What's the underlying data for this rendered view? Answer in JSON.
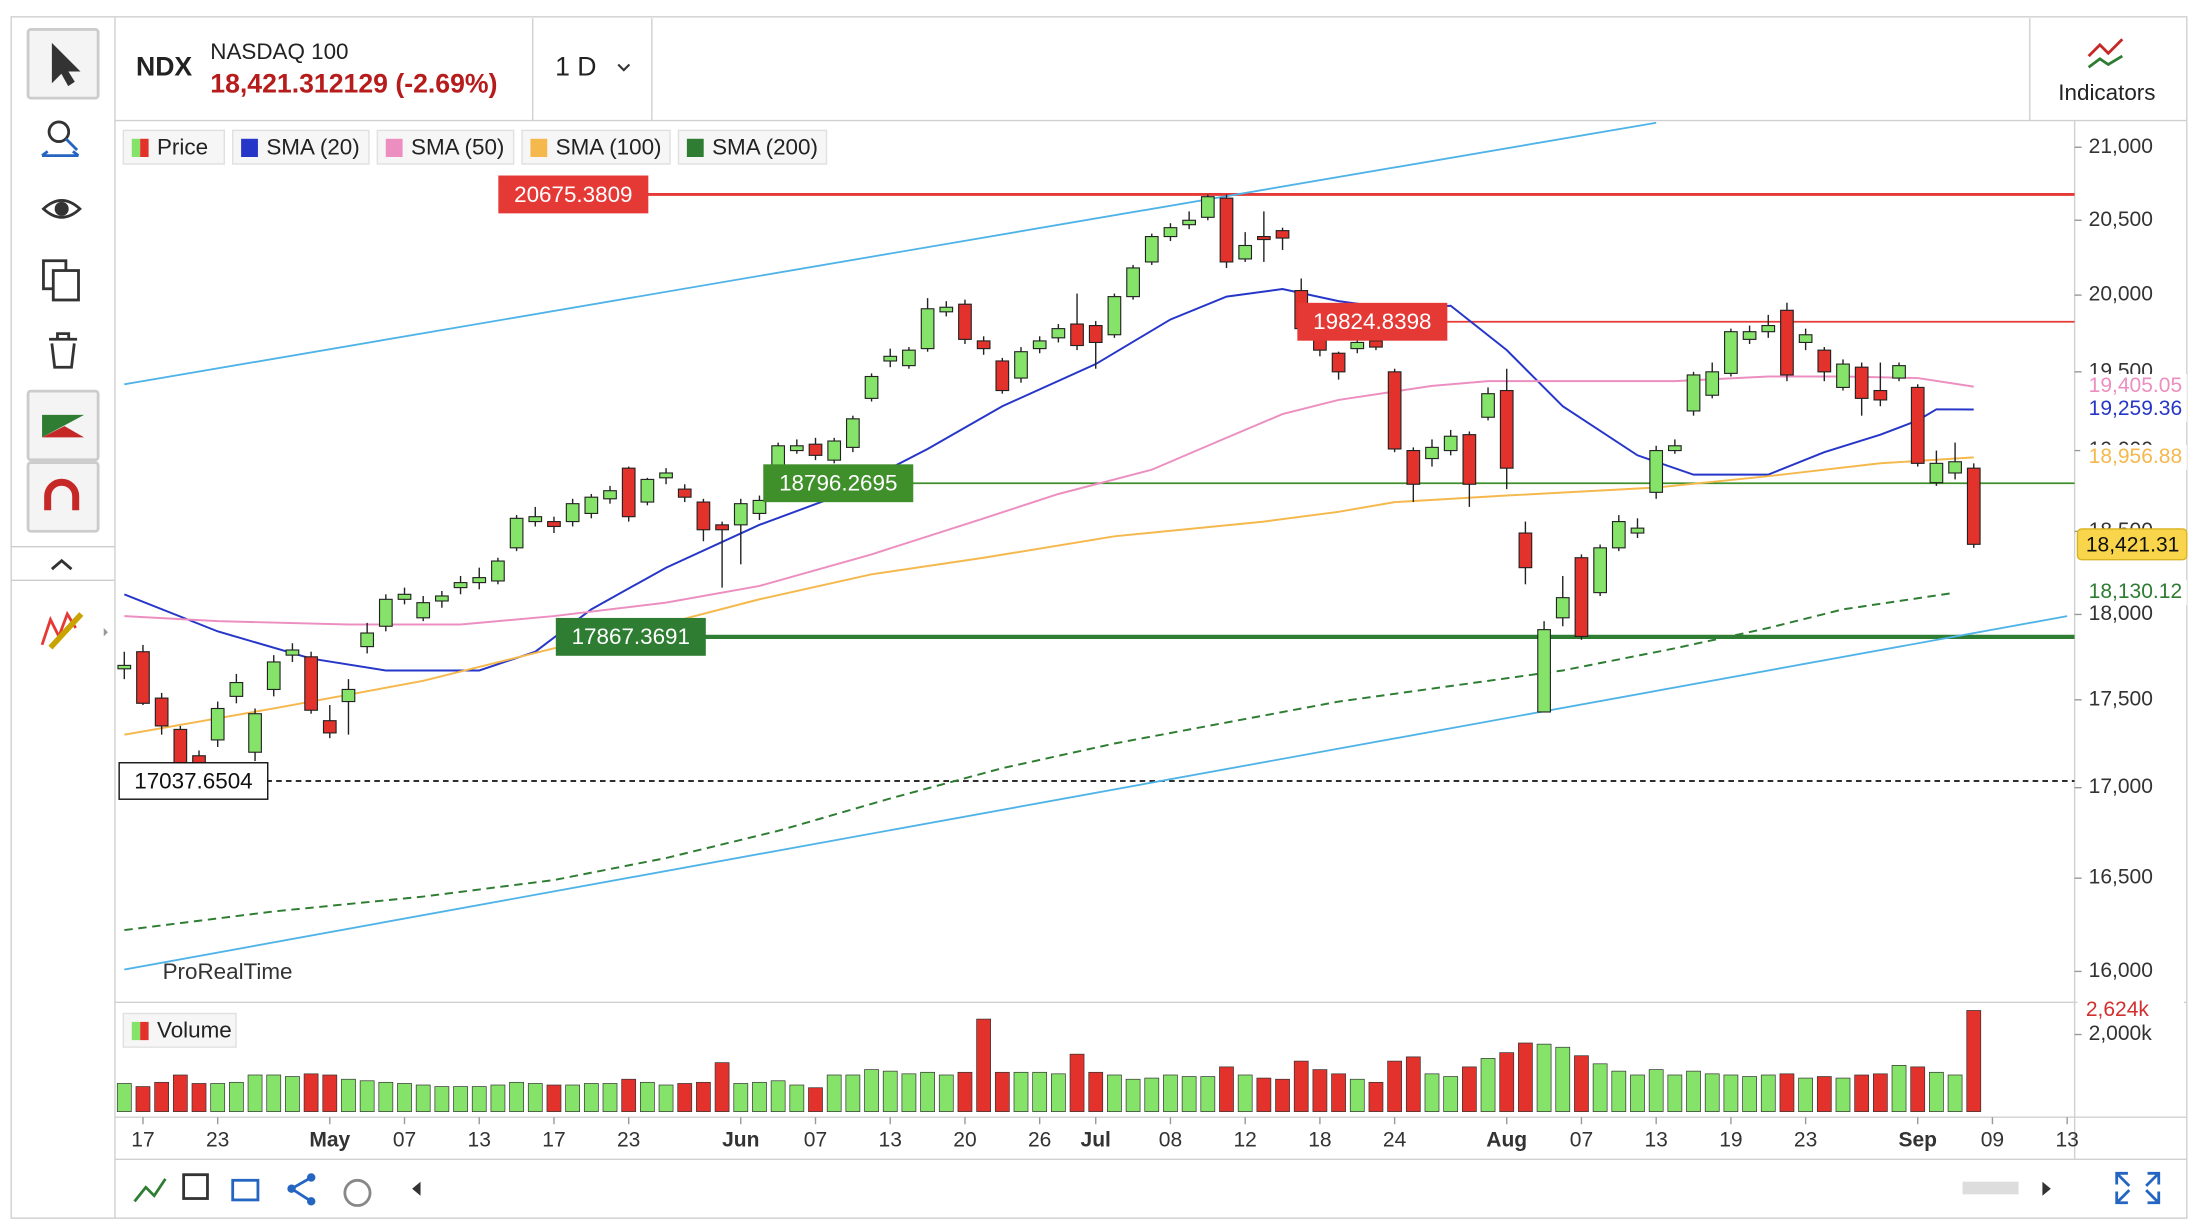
{
  "header": {
    "symbol": "NDX",
    "name": "NASDAQ 100",
    "price": "18,421.312129 (-2.69%)",
    "interval": "1 D",
    "indicators": "Indicators"
  },
  "chart_data": [
    {
      "type": "candlestick",
      "name": "Price",
      "watermark": "ProRealTime",
      "up_color": "#86e36a",
      "down_color": "#e3312b",
      "log_scale": true,
      "xlim": [
        -0.5,
        104.4
      ],
      "ylim": [
        15860,
        21166
      ],
      "xticks": [
        {
          "value": 1,
          "label": "17"
        },
        {
          "value": 5,
          "label": "23"
        },
        {
          "value": 11,
          "label": "May"
        },
        {
          "value": 15,
          "label": "07"
        },
        {
          "value": 19,
          "label": "13"
        },
        {
          "value": 23,
          "label": "17"
        },
        {
          "value": 27,
          "label": "23"
        },
        {
          "value": 33,
          "label": "Jun"
        },
        {
          "value": 37,
          "label": "07"
        },
        {
          "value": 41,
          "label": "13"
        },
        {
          "value": 45,
          "label": "20"
        },
        {
          "value": 49,
          "label": "26"
        },
        {
          "value": 52,
          "label": "Jul"
        },
        {
          "value": 56,
          "label": "08"
        },
        {
          "value": 60,
          "label": "12"
        },
        {
          "value": 64,
          "label": "18"
        },
        {
          "value": 68,
          "label": "24"
        },
        {
          "value": 74,
          "label": "Aug"
        },
        {
          "value": 78,
          "label": "07"
        },
        {
          "value": 82,
          "label": "13"
        },
        {
          "value": 86,
          "label": "19"
        },
        {
          "value": 90,
          "label": "23"
        },
        {
          "value": 96,
          "label": "Sep"
        },
        {
          "value": 100,
          "label": "09"
        },
        {
          "value": 104,
          "label": "13"
        }
      ],
      "yticks": [
        {
          "value": 16000,
          "label": "16,000"
        },
        {
          "value": 16500,
          "label": "16,500"
        },
        {
          "value": 17000,
          "label": "17,000"
        },
        {
          "value": 17500,
          "label": "17,500"
        },
        {
          "value": 18000,
          "label": "18,000"
        },
        {
          "value": 18500,
          "label": "18,500"
        },
        {
          "value": 19000,
          "label": "19,000"
        },
        {
          "value": 19500,
          "label": "19,500"
        },
        {
          "value": 20000,
          "label": "20,000"
        },
        {
          "value": 20500,
          "label": "20,500"
        },
        {
          "value": 21000,
          "label": "21,000"
        }
      ],
      "open": [
        17680,
        17780,
        17510,
        17330,
        17180,
        17270,
        17520,
        17200,
        17560,
        17760,
        17750,
        17380,
        17490,
        17810,
        17930,
        18090,
        17980,
        18080,
        18160,
        18190,
        18200,
        18400,
        18560,
        18560,
        18560,
        18610,
        18700,
        18890,
        18680,
        18830,
        18760,
        18680,
        18540,
        18540,
        18610,
        18890,
        19000,
        19040,
        18940,
        19020,
        19330,
        19570,
        19540,
        19650,
        19890,
        19940,
        19700,
        19570,
        19460,
        19650,
        19720,
        19810,
        19800,
        19740,
        19990,
        20220,
        20390,
        20470,
        20520,
        20650,
        20240,
        20390,
        20430,
        20030,
        19780,
        19620,
        19650,
        19700,
        19500,
        19000,
        18950,
        19000,
        19100,
        19210,
        19380,
        18490,
        17430,
        17980,
        18340,
        18130,
        18400,
        18490,
        18740,
        19000,
        19250,
        19350,
        19490,
        19710,
        19760,
        19900,
        19690,
        19640,
        19400,
        19530,
        19380,
        19460,
        19400,
        18800,
        18860,
        18890
      ],
      "high": [
        17780,
        17820,
        17540,
        17350,
        17210,
        17490,
        17650,
        17450,
        17760,
        17830,
        17780,
        17470,
        17620,
        17950,
        18120,
        18160,
        18110,
        18140,
        18230,
        18280,
        18340,
        18600,
        18650,
        18590,
        18700,
        18730,
        18780,
        18900,
        18830,
        18890,
        18790,
        18700,
        18560,
        18700,
        18720,
        19050,
        19070,
        19080,
        19080,
        19220,
        19490,
        19650,
        19660,
        19980,
        19960,
        19970,
        19730,
        19590,
        19660,
        19730,
        19810,
        20010,
        19830,
        20010,
        20200,
        20410,
        20480,
        20560,
        20675,
        20675,
        20420,
        20560,
        20450,
        20110,
        19800,
        19630,
        19720,
        19740,
        19520,
        19020,
        19070,
        19130,
        19120,
        19400,
        19520,
        18560,
        17960,
        18230,
        18360,
        18420,
        18600,
        18580,
        19030,
        19070,
        19500,
        19560,
        19780,
        19800,
        19870,
        19950,
        19780,
        19660,
        19580,
        19560,
        19560,
        19560,
        19420,
        19000,
        19050,
        18920
      ],
      "low": [
        17620,
        17470,
        17300,
        17040,
        17090,
        17230,
        17480,
        17150,
        17520,
        17720,
        17420,
        17280,
        17300,
        17770,
        17900,
        18060,
        17960,
        18040,
        18120,
        18150,
        18180,
        18380,
        18530,
        18490,
        18530,
        18580,
        18670,
        18560,
        18660,
        18790,
        18680,
        18440,
        18160,
        18300,
        18570,
        18870,
        18980,
        18940,
        18920,
        18990,
        19310,
        19530,
        19520,
        19630,
        19860,
        19680,
        19610,
        19360,
        19430,
        19620,
        19690,
        19640,
        19520,
        19720,
        19970,
        20200,
        20360,
        20440,
        20500,
        20180,
        20220,
        20220,
        20300,
        19760,
        19600,
        19450,
        19620,
        19640,
        18990,
        18680,
        18900,
        18970,
        18650,
        19190,
        18760,
        18180,
        17430,
        17930,
        17850,
        18110,
        18380,
        18460,
        18700,
        18980,
        19220,
        19330,
        19470,
        19680,
        19720,
        19440,
        19640,
        19440,
        19380,
        19220,
        19280,
        19440,
        18900,
        18780,
        18820,
        18400
      ],
      "close": [
        17700,
        17480,
        17350,
        17100,
        17130,
        17450,
        17600,
        17420,
        17720,
        17790,
        17440,
        17310,
        17560,
        17890,
        18090,
        18120,
        18070,
        18110,
        18190,
        18220,
        18320,
        18580,
        18590,
        18530,
        18670,
        18710,
        18750,
        18590,
        18820,
        18860,
        18710,
        18510,
        18510,
        18670,
        18690,
        19030,
        19030,
        18970,
        19060,
        19200,
        19470,
        19600,
        19640,
        19910,
        19920,
        19710,
        19650,
        19380,
        19630,
        19700,
        19780,
        19670,
        19690,
        19990,
        20180,
        20390,
        20450,
        20500,
        20660,
        20220,
        20330,
        20370,
        20380,
        19780,
        19640,
        19500,
        19690,
        19660,
        19010,
        18790,
        19020,
        19090,
        18790,
        19360,
        18890,
        18280,
        17910,
        18100,
        17870,
        18400,
        18560,
        18520,
        19000,
        19030,
        19480,
        19500,
        19760,
        19760,
        19800,
        19480,
        19740,
        19500,
        19550,
        19330,
        19320,
        19540,
        18920,
        18920,
        18930,
        18421.312129
      ],
      "value_labels": [
        null,
        null,
        null,
        null,
        null,
        null,
        null,
        null,
        null,
        null,
        null,
        null,
        null,
        null,
        null,
        null,
        null,
        null,
        null,
        null,
        null,
        null,
        null,
        null,
        null,
        null,
        null,
        null,
        null,
        null,
        null,
        null,
        null,
        null,
        null,
        null,
        null,
        null,
        null,
        null,
        null,
        null,
        null,
        null,
        null,
        null,
        null,
        null,
        null,
        null,
        null,
        null,
        null,
        null,
        null,
        null,
        null,
        null,
        null,
        null,
        null,
        null,
        null,
        null,
        null,
        null,
        null,
        null,
        null,
        null,
        null,
        null,
        null,
        null,
        null,
        null,
        null,
        null,
        null,
        null,
        null,
        null,
        null,
        null,
        null,
        null,
        null,
        null,
        null,
        null,
        null,
        null,
        null,
        null,
        null,
        null,
        null,
        null,
        null,
        "18,421.31"
      ],
      "series": [
        {
          "name": "SMA (20)",
          "color": "#2636c8",
          "x": [
            0,
            5,
            10,
            14,
            19,
            22,
            25,
            29,
            34,
            38,
            43,
            47,
            52,
            56,
            59,
            62,
            65,
            68,
            71,
            74,
            77,
            81,
            84,
            88,
            91,
            94,
            96,
            97,
            99
          ],
          "values": [
            18120,
            17900,
            17740,
            17670,
            17670,
            17780,
            18030,
            18280,
            18540,
            18710,
            19010,
            19280,
            19550,
            19840,
            19990,
            20040,
            19960,
            19910,
            19930,
            19640,
            19280,
            18970,
            18850,
            18850,
            18990,
            19100,
            19190,
            19260,
            19259.36
          ],
          "value_labels": [
            null,
            null,
            null,
            null,
            null,
            null,
            null,
            null,
            null,
            null,
            null,
            null,
            null,
            null,
            null,
            null,
            null,
            null,
            null,
            null,
            null,
            null,
            null,
            null,
            null,
            null,
            null,
            null,
            "19,259.36"
          ]
        },
        {
          "name": "SMA (50)",
          "color": "#ec8fc0",
          "x": [
            0,
            5,
            12,
            18,
            23,
            29,
            34,
            40,
            46,
            50,
            55,
            59,
            62,
            65,
            70,
            73,
            77,
            83,
            88,
            92,
            96,
            99
          ],
          "values": [
            17990,
            17960,
            17940,
            17940,
            17990,
            18070,
            18170,
            18360,
            18580,
            18730,
            18880,
            19080,
            19230,
            19320,
            19410,
            19440,
            19440,
            19440,
            19470,
            19470,
            19460,
            19405.05
          ],
          "value_labels": [
            null,
            null,
            null,
            null,
            null,
            null,
            null,
            null,
            null,
            null,
            null,
            null,
            null,
            null,
            null,
            null,
            null,
            null,
            null,
            null,
            null,
            "19,405.05"
          ]
        },
        {
          "name": "SMA (100)",
          "color": "#f5b84d",
          "x": [
            0,
            8,
            16,
            23,
            26,
            34,
            40,
            46,
            53,
            61,
            65,
            68,
            74,
            82,
            88,
            94,
            99
          ],
          "values": [
            17300,
            17450,
            17610,
            17800,
            17860,
            18090,
            18240,
            18340,
            18470,
            18560,
            18620,
            18680,
            18720,
            18770,
            18840,
            18920,
            18956.88
          ],
          "value_labels": [
            null,
            null,
            null,
            null,
            null,
            null,
            null,
            null,
            null,
            null,
            null,
            null,
            null,
            null,
            null,
            null,
            "18,956.88"
          ]
        },
        {
          "name": "SMA (200)",
          "color": "#2e7d32",
          "dashed": true,
          "x": [
            0,
            8,
            16,
            23,
            29,
            35,
            41,
            47,
            53,
            59,
            65,
            71,
            77,
            83,
            88,
            92,
            98
          ],
          "values": [
            16220,
            16320,
            16400,
            16490,
            16610,
            16760,
            16940,
            17110,
            17250,
            17370,
            17490,
            17580,
            17670,
            17800,
            17920,
            18030,
            18130.12
          ],
          "value_labels": [
            null,
            null,
            null,
            null,
            null,
            null,
            null,
            null,
            null,
            null,
            null,
            null,
            null,
            null,
            null,
            null,
            "18,130.12"
          ]
        }
      ],
      "levels": [
        {
          "value": 20675.3809,
          "color": "#e53935",
          "text_color": "#ffffff"
        },
        {
          "value": 19824.8398,
          "color": "#e53935",
          "text_color": "#ffffff"
        },
        {
          "value": 18796.2695,
          "color": "#3f8f2a",
          "text_color": "#ffffff"
        },
        {
          "value": 17867.3691,
          "color": "#2e7d32",
          "text_color": "#ffffff"
        },
        {
          "value": 17037.6504,
          "color": "#111111",
          "text_color": "#111111",
          "dashed": true
        }
      ],
      "trendlines": [
        {
          "color": "#4fb3e8",
          "x": [
            0,
            82
          ],
          "values": [
            19420,
            21170
          ]
        },
        {
          "color": "#4fb3e8",
          "x": [
            0,
            104
          ],
          "values": [
            16010,
            17990
          ]
        }
      ]
    },
    {
      "type": "bar",
      "name": "Volume",
      "ylim": [
        0,
        2800
      ],
      "yticks": [
        {
          "value": 2000,
          "label": "2,000k"
        }
      ],
      "values": [
        730,
        650,
        760,
        950,
        730,
        730,
        760,
        950,
        950,
        910,
        980,
        950,
        840,
        800,
        760,
        730,
        690,
        650,
        650,
        650,
        690,
        760,
        730,
        690,
        690,
        730,
        730,
        840,
        760,
        690,
        730,
        760,
        1270,
        730,
        760,
        800,
        690,
        620,
        950,
        950,
        1090,
        1050,
        980,
        1020,
        950,
        1020,
        2400,
        1020,
        1020,
        1020,
        980,
        1490,
        1020,
        950,
        840,
        870,
        950,
        910,
        910,
        1160,
        950,
        870,
        840,
        1310,
        1090,
        980,
        840,
        760,
        1310,
        1420,
        980,
        910,
        1160,
        1380,
        1530,
        1780,
        1750,
        1670,
        1450,
        1240,
        1050,
        950,
        1090,
        950,
        1050,
        980,
        950,
        910,
        950,
        980,
        870,
        910,
        870,
        950,
        980,
        1200,
        1160,
        1020,
        950,
        2624
      ],
      "value_labels": [
        null,
        null,
        null,
        null,
        null,
        null,
        null,
        null,
        null,
        null,
        null,
        null,
        null,
        null,
        null,
        null,
        null,
        null,
        null,
        null,
        null,
        null,
        null,
        null,
        null,
        null,
        null,
        null,
        null,
        null,
        null,
        null,
        null,
        null,
        null,
        null,
        null,
        null,
        null,
        null,
        null,
        null,
        null,
        null,
        null,
        null,
        null,
        null,
        null,
        null,
        null,
        null,
        null,
        null,
        null,
        null,
        null,
        null,
        null,
        null,
        null,
        null,
        null,
        null,
        null,
        null,
        null,
        null,
        null,
        null,
        null,
        null,
        null,
        null,
        null,
        null,
        null,
        null,
        null,
        null,
        null,
        null,
        null,
        null,
        null,
        null,
        null,
        null,
        null,
        null,
        null,
        null,
        null,
        null,
        null,
        null,
        null,
        null,
        null,
        "2,624k"
      ]
    }
  ]
}
